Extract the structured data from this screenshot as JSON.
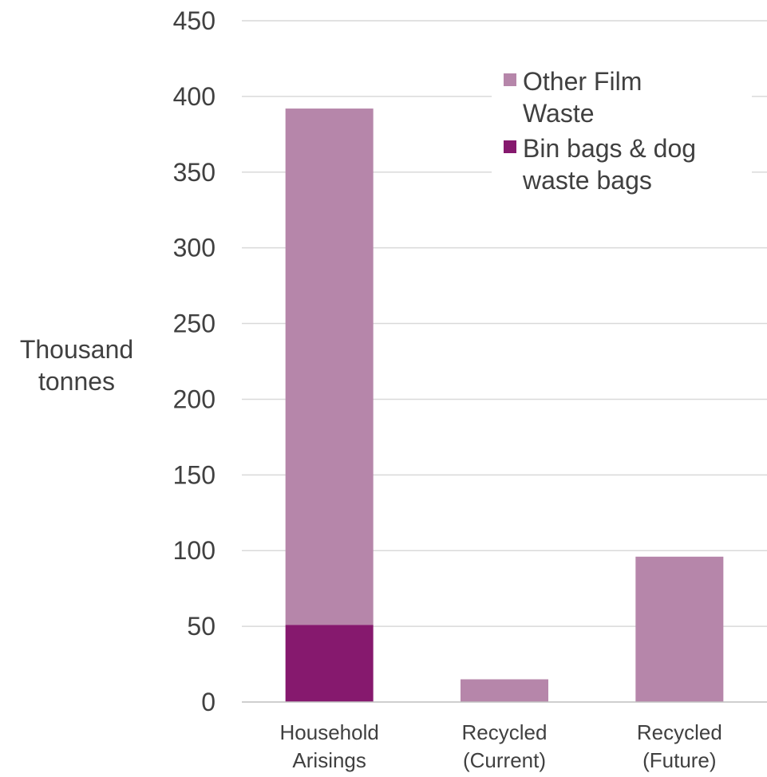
{
  "chart_data": {
    "type": "bar",
    "stacked": true,
    "title": "",
    "xlabel": "",
    "ylabel_lines": [
      "Thousand",
      "tonnes"
    ],
    "ylim": [
      0,
      450
    ],
    "yticks": [
      0,
      50,
      100,
      150,
      200,
      250,
      300,
      350,
      400,
      450
    ],
    "grid": true,
    "legend_position": "top-right",
    "categories": [
      [
        "Household",
        "Arisings"
      ],
      [
        "Recycled",
        "(Current)"
      ],
      [
        "Recycled",
        "(Future)"
      ]
    ],
    "series": [
      {
        "name": "Bin bags & dog waste bags",
        "legend_lines": [
          "Bin bags & dog",
          "waste bags"
        ],
        "color": "#86196e",
        "values": [
          51,
          0,
          0
        ]
      },
      {
        "name": "Other Film Waste",
        "legend_lines": [
          "Other Film",
          "Waste"
        ],
        "color": "#b686aa",
        "values": [
          341,
          15,
          96
        ]
      }
    ],
    "legend_order": [
      1,
      0
    ],
    "gridline_color": "#d9d9d9",
    "axis_color": "#bfbfbf"
  }
}
